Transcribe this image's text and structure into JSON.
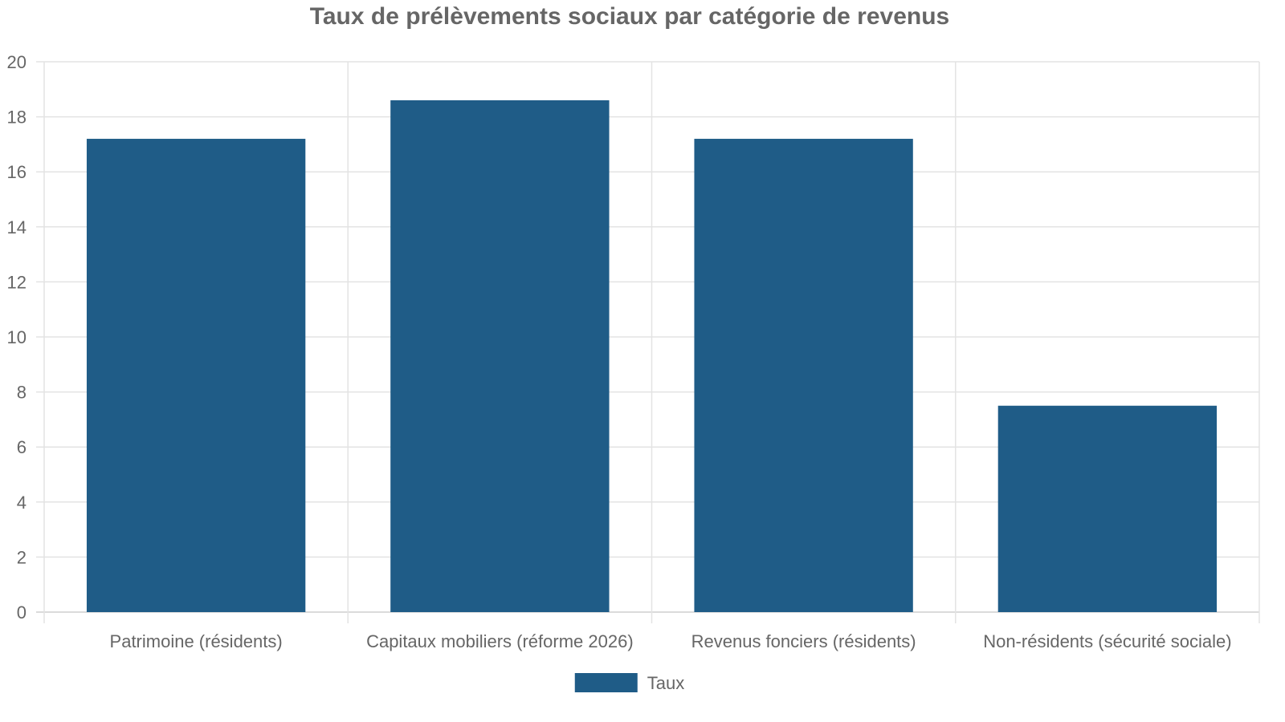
{
  "chart_data": {
    "type": "bar",
    "title": "Taux de prélèvements sociaux par catégorie de revenus",
    "categories": [
      "Patrimoine (résidents)",
      "Capitaux mobiliers (réforme 2026)",
      "Revenus fonciers (résidents)",
      "Non-résidents (sécurité sociale)"
    ],
    "series": [
      {
        "name": "Taux",
        "values": [
          17.2,
          18.6,
          17.2,
          7.5
        ],
        "color": "#1f5c87"
      }
    ],
    "ylim": [
      0,
      20
    ],
    "yticks": [
      0,
      2,
      4,
      6,
      8,
      10,
      12,
      14,
      16,
      18,
      20
    ],
    "xlabel": "",
    "ylabel": "",
    "grid": true,
    "legend_position": "bottom"
  }
}
